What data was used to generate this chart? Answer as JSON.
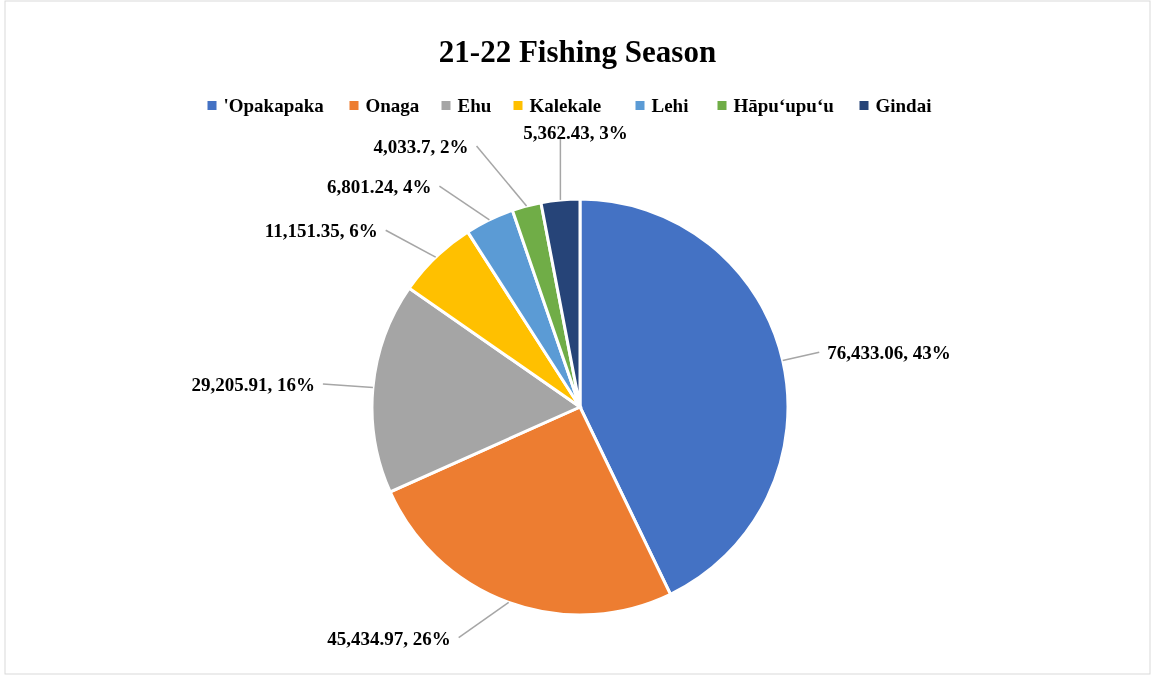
{
  "chart_data": {
    "type": "pie",
    "title": "21-22 Fishing Season",
    "categories": [
      "'Opakapaka",
      "Onaga",
      "Ehu",
      "Kalekale",
      "Lehi",
      "Hāpu‘upu‘u",
      "Gindai"
    ],
    "values": [
      76433.06,
      45434.97,
      29205.91,
      11151.35,
      6801.24,
      4033.7,
      5362.43
    ],
    "colors": [
      "#4472c4",
      "#ed7d31",
      "#a5a5a5",
      "#ffc000",
      "#5b9bd5",
      "#70ad47",
      "#264478"
    ],
    "value_labels": [
      "76,433.06, 43%",
      "45,434.97, 26%",
      "29,205.91, 16%",
      "11,151.35, 6%",
      "6,801.24, 4%",
      "4,033.7, 2%",
      "5,362.43, 3%"
    ],
    "legend": "top"
  }
}
